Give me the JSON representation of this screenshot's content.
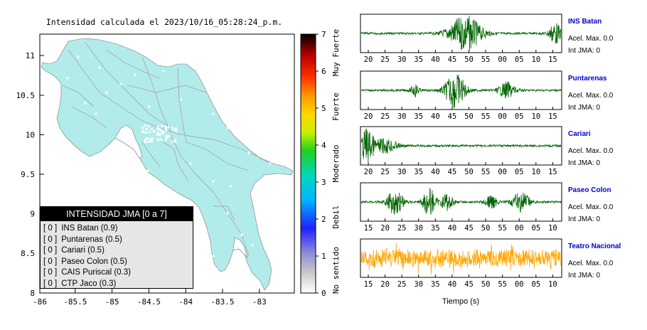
{
  "map": {
    "title": "Intensidad calculada el 2023/10/16_05:28:24_p.m.",
    "land_color": "#b2ecea",
    "x_ticks": [
      "-86",
      "-85.5",
      "-85",
      "-84.5",
      "-84",
      "-83.5",
      "-83"
    ],
    "y_ticks": [
      "11",
      "10.5",
      "10",
      "9.5",
      "9",
      "8.5",
      "8"
    ]
  },
  "colorbar": {
    "ticks": [
      "7",
      "6",
      "5",
      "4",
      "3",
      "2",
      "1",
      "0"
    ],
    "labels": [
      "Muy Fuerte",
      "Fuerte",
      "Moderado",
      "Debil",
      "No sentido"
    ]
  },
  "legend": {
    "header": "INTENSIDAD JMA [0 a 7]",
    "items": [
      {
        "code": "[ 0 ]",
        "label": "INS Batan (0.9)"
      },
      {
        "code": "[ 0 ]",
        "label": "Puntarenas (0.5)"
      },
      {
        "code": "[ 0 ]",
        "label": "Cariari (0.5)"
      },
      {
        "code": "[ 0 ]",
        "label": "Paseo Colon (0.5)"
      },
      {
        "code": "[ 0 ]",
        "label": "CAIS Puriscal (0.3)"
      },
      {
        "code": "[ 0 ]",
        "label": "CTP Jaco (0.3)"
      }
    ]
  },
  "waveforms": {
    "xlabel": "Tiempo (s)",
    "panels": [
      {
        "station": "INS Batan",
        "acel": "Acel. Max. 0.0",
        "jma": "Int JMA: 0",
        "color": "#006400",
        "ticks": [
          "20",
          "25",
          "30",
          "35",
          "40",
          "45",
          "50",
          "55",
          "00",
          "05",
          "10",
          "15"
        ]
      },
      {
        "station": "Puntarenas",
        "acel": "Acel. Max. 0.0",
        "jma": "Int JMA: 0",
        "color": "#006400",
        "ticks": [
          "20",
          "25",
          "30",
          "35",
          "40",
          "45",
          "50",
          "55",
          "00",
          "05",
          "10",
          "15"
        ]
      },
      {
        "station": "Cariari",
        "acel": "Acel. Max. 0.0",
        "jma": "Int JMA: 0",
        "color": "#006400",
        "ticks": [
          "20",
          "25",
          "30",
          "35",
          "40",
          "45",
          "50",
          "55",
          "00",
          "05",
          "10",
          "15"
        ]
      },
      {
        "station": "Paseo Colon",
        "acel": "Acel. Max. 0.0",
        "jma": "Int JMA: 0",
        "color": "#006400",
        "ticks": [
          "15",
          "20",
          "25",
          "30",
          "35",
          "40",
          "45",
          "50",
          "55",
          "00",
          "05",
          "10"
        ]
      },
      {
        "station": "Teatro Nacional",
        "acel": "Acel. Max. 0.0",
        "jma": "Int JMA: 0",
        "color": "#ffa500",
        "ticks": [
          "15",
          "20",
          "25",
          "30",
          "35",
          "40",
          "45",
          "50",
          "55",
          "00",
          "05",
          "10"
        ]
      }
    ]
  },
  "chart_data": {
    "type": "line",
    "title": "Intensidad calculada el 2023/10/16_05:28:24_p.m.",
    "xlabel": "Tiempo (s)",
    "series": [
      {
        "name": "INS Batan",
        "acel_max": 0.0,
        "int_jma": 0
      },
      {
        "name": "Puntarenas",
        "acel_max": 0.0,
        "int_jma": 0
      },
      {
        "name": "Cariari",
        "acel_max": 0.0,
        "int_jma": 0
      },
      {
        "name": "Paseo Colon",
        "acel_max": 0.0,
        "int_jma": 0
      },
      {
        "name": "Teatro Nacional",
        "acel_max": 0.0,
        "int_jma": 0
      }
    ],
    "map_xlim": [
      -86,
      -82.6
    ],
    "map_ylim": [
      8,
      11.3
    ],
    "colorbar_range": [
      0,
      7
    ]
  }
}
